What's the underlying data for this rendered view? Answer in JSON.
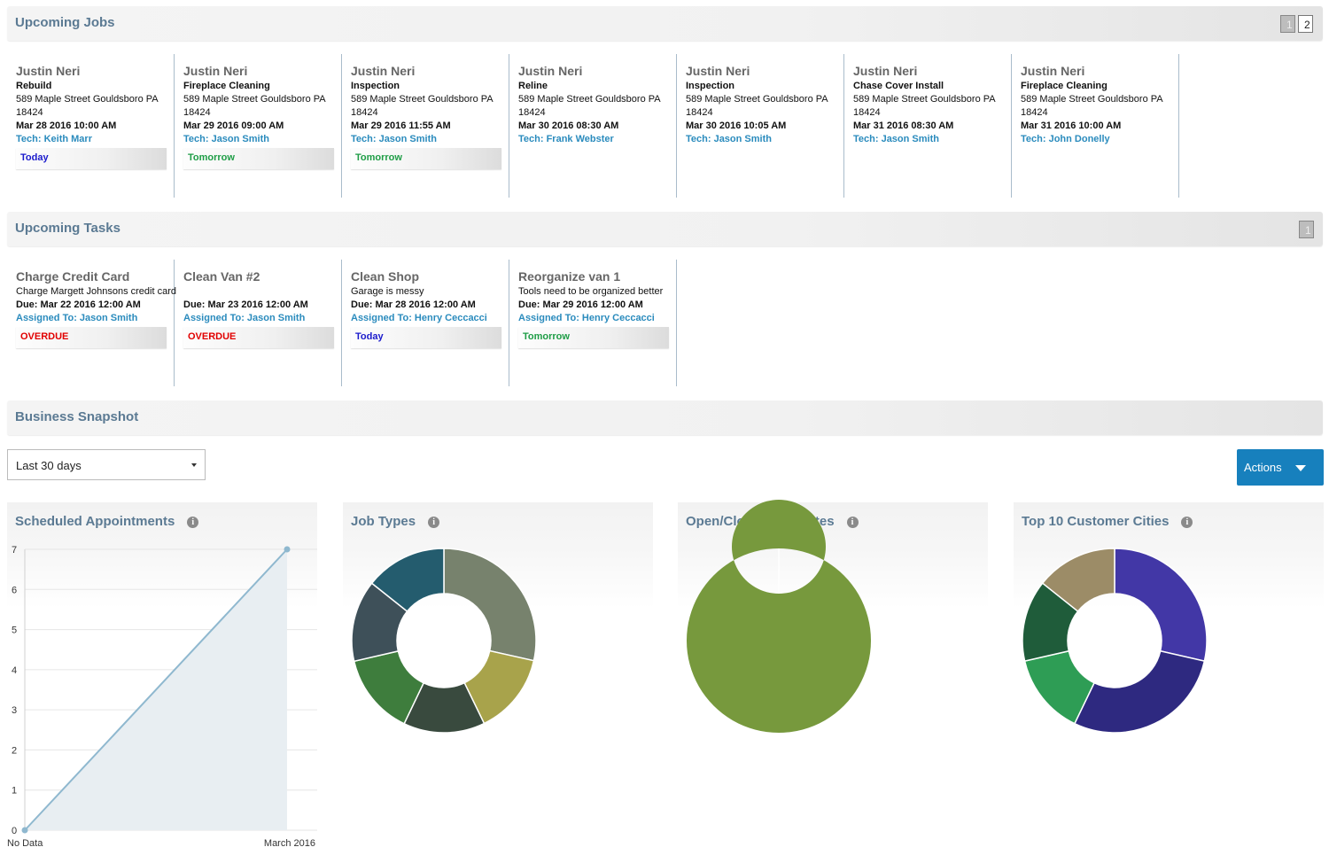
{
  "upcoming_jobs": {
    "title": "Upcoming Jobs",
    "pages": [
      "1",
      "2"
    ],
    "jobs": [
      {
        "customer": "Justin Neri",
        "type": "Rebuild",
        "street": "589 Maple Street Gouldsboro PA",
        "zip": "18424",
        "datetime": "Mar 28 2016 10:00 AM",
        "tech": "Tech: Keith Marr",
        "badge": "Today"
      },
      {
        "customer": "Justin Neri",
        "type": "Fireplace Cleaning",
        "street": "589 Maple Street Gouldsboro PA",
        "zip": "18424",
        "datetime": "Mar 29 2016 09:00 AM",
        "tech": "Tech: Jason Smith",
        "badge": "Tomorrow"
      },
      {
        "customer": "Justin Neri",
        "type": "Inspection",
        "street": "589 Maple Street Gouldsboro PA",
        "zip": "18424",
        "datetime": "Mar 29 2016 11:55 AM",
        "tech": "Tech: Jason Smith",
        "badge": "Tomorrow"
      },
      {
        "customer": "Justin Neri",
        "type": "Reline",
        "street": "589 Maple Street Gouldsboro PA",
        "zip": "18424",
        "datetime": "Mar 30 2016 08:30 AM",
        "tech": "Tech: Frank Webster",
        "badge": ""
      },
      {
        "customer": "Justin Neri",
        "type": "Inspection",
        "street": "589 Maple Street Gouldsboro PA",
        "zip": "18424",
        "datetime": "Mar 30 2016 10:05 AM",
        "tech": "Tech: Jason Smith",
        "badge": ""
      },
      {
        "customer": "Justin Neri",
        "type": "Chase Cover Install",
        "street": "589 Maple Street Gouldsboro PA",
        "zip": "18424",
        "datetime": "Mar 31 2016 08:30 AM",
        "tech": "Tech: Jason Smith",
        "badge": ""
      },
      {
        "customer": "Justin Neri",
        "type": "Fireplace Cleaning",
        "street": "589 Maple Street Gouldsboro PA",
        "zip": "18424",
        "datetime": "Mar 31 2016 10:00 AM",
        "tech": "Tech: John Donelly",
        "badge": ""
      }
    ]
  },
  "upcoming_tasks": {
    "title": "Upcoming Tasks",
    "pages": [
      "1"
    ],
    "tasks": [
      {
        "title": "Charge Credit Card",
        "desc": "Charge Margett Johnsons credit card",
        "due": "Due: Mar 22 2016 12:00 AM",
        "assigned": "Assigned To: Jason Smith",
        "badge": "OVERDUE"
      },
      {
        "title": "Clean Van #2",
        "desc": "",
        "due": "Due: Mar 23 2016 12:00 AM",
        "assigned": "Assigned To: Jason Smith",
        "badge": "OVERDUE"
      },
      {
        "title": "Clean Shop",
        "desc": "Garage is messy",
        "due": "Due: Mar 28 2016 12:00 AM",
        "assigned": "Assigned To: Henry Ceccacci",
        "badge": "Today"
      },
      {
        "title": "Reorganize van 1",
        "desc": "Tools need to be organized better",
        "due": "Due: Mar 29 2016 12:00 AM",
        "assigned": "Assigned To: Henry Ceccacci",
        "badge": "Tomorrow"
      }
    ]
  },
  "business_snapshot": {
    "title": "Business Snapshot",
    "range_select": "Last 30 days",
    "actions_label": "Actions",
    "info_glyph": "i"
  },
  "colors": {
    "accent": "#1780bd",
    "header_text": "#5b7a93",
    "tech_link": "#2a8bbd",
    "overdue": "#e10000",
    "today": "#1b1bcc",
    "tomorrow": "#1e9d46"
  },
  "chart_data": [
    {
      "type": "area",
      "title": "Scheduled Appointments",
      "x": [
        "No Data",
        "March 2016"
      ],
      "series": [
        {
          "values": [
            0,
            7
          ]
        }
      ],
      "ylim": [
        0,
        7
      ],
      "yticks": [
        0,
        1,
        2,
        3,
        4,
        5,
        6,
        7
      ],
      "grid": true,
      "color": "#8fb8cf"
    },
    {
      "type": "pie",
      "title": "Job Types",
      "donut": true,
      "values": [
        28.5,
        14.3,
        14.3,
        14.3,
        14.3,
        14.3
      ],
      "colors": [
        "#77826d",
        "#a8a34b",
        "#394a3e",
        "#3e7d3d",
        "#3e5059",
        "#245c6e"
      ]
    },
    {
      "type": "pie",
      "title": "Open/Closed Estimates",
      "donut": true,
      "values": [
        100
      ],
      "colors": [
        "#77993d"
      ]
    },
    {
      "type": "pie",
      "title": "Top 10 Customer Cities",
      "donut": true,
      "values": [
        28.6,
        28.6,
        14.3,
        14.3,
        14.3
      ],
      "colors": [
        "#4237a6",
        "#2e2980",
        "#2e9d55",
        "#1f5c3a",
        "#9c8c67"
      ]
    }
  ]
}
